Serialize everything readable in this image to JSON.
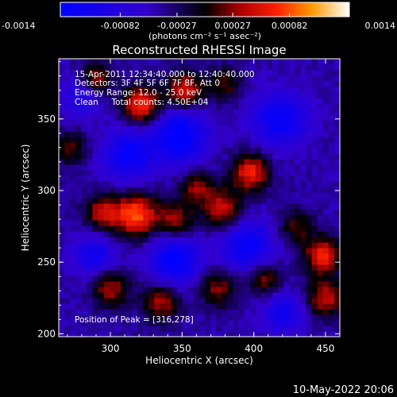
{
  "chart_data": {
    "type": "heatmap",
    "title": "Reconstructed RHESSI Image",
    "xlabel": "Heliocentric X (arcsec)",
    "ylabel": "Heliocentric Y (arcsec)",
    "xlim": [
      264,
      460
    ],
    "ylim": [
      198,
      392
    ],
    "x_ticks": [
      {
        "value": 300,
        "label": "300"
      },
      {
        "value": 350,
        "label": "350"
      },
      {
        "value": 400,
        "label": "400"
      },
      {
        "value": 450,
        "label": "450"
      }
    ],
    "y_ticks": [
      {
        "value": 200,
        "label": "200"
      },
      {
        "value": 250,
        "label": "250"
      },
      {
        "value": 300,
        "label": "300"
      },
      {
        "value": 350,
        "label": "350"
      }
    ],
    "annotations": [
      "15-Apr-2011 12:34:40.000 to 12:40:40.000",
      "Detectors: 3F 4F 5F 6F 7F 8F, Att 0",
      "Energy Range: 12.0 - 25.0 keV",
      "Clean     Total counts: 4.50E+04"
    ],
    "peak_label": "Position of Peak = [316,278]",
    "peak": [
      316,
      278
    ],
    "colorbar": {
      "range": [
        -0.0014,
        0.0014
      ],
      "ticks": [
        {
          "value": -0.0014,
          "label": "-0.0014"
        },
        {
          "value": -0.00082,
          "label": "-0.00082"
        },
        {
          "value": -0.00027,
          "label": "-0.00027"
        },
        {
          "value": 0.00027,
          "label": "0.00027"
        },
        {
          "value": 0.00082,
          "label": "0.00082"
        },
        {
          "value": 0.0014,
          "label": "0.0014"
        }
      ],
      "units": "(photons cm⁻² s⁻¹ asec⁻²)"
    },
    "sources": [
      {
        "x": 318,
        "y": 283,
        "amp": 0.0013,
        "sigma": 10
      },
      {
        "x": 295,
        "y": 285,
        "amp": 0.0009,
        "sigma": 9
      },
      {
        "x": 345,
        "y": 280,
        "amp": 0.0008,
        "sigma": 9
      },
      {
        "x": 378,
        "y": 288,
        "amp": 0.0009,
        "sigma": 10
      },
      {
        "x": 398,
        "y": 313,
        "amp": 0.0011,
        "sigma": 9
      },
      {
        "x": 360,
        "y": 303,
        "amp": 0.0007,
        "sigma": 8
      },
      {
        "x": 322,
        "y": 360,
        "amp": 0.0012,
        "sigma": 9
      },
      {
        "x": 352,
        "y": 370,
        "amp": 0.001,
        "sigma": 9
      },
      {
        "x": 290,
        "y": 378,
        "amp": 0.0008,
        "sigma": 8
      },
      {
        "x": 380,
        "y": 375,
        "amp": 0.0006,
        "sigma": 8
      },
      {
        "x": 448,
        "y": 255,
        "amp": 0.0011,
        "sigma": 9
      },
      {
        "x": 450,
        "y": 225,
        "amp": 0.0009,
        "sigma": 9
      },
      {
        "x": 430,
        "y": 275,
        "amp": 0.0006,
        "sigma": 8
      },
      {
        "x": 300,
        "y": 232,
        "amp": 0.0008,
        "sigma": 9
      },
      {
        "x": 335,
        "y": 222,
        "amp": 0.0008,
        "sigma": 9
      },
      {
        "x": 375,
        "y": 232,
        "amp": 0.0007,
        "sigma": 9
      },
      {
        "x": 408,
        "y": 238,
        "amp": 0.0007,
        "sigma": 8
      },
      {
        "x": 272,
        "y": 330,
        "amp": 0.0006,
        "sigma": 8
      },
      {
        "x": 348,
        "y": 338,
        "amp": -0.0011,
        "sigma": 13
      },
      {
        "x": 312,
        "y": 325,
        "amp": -0.0009,
        "sigma": 12
      },
      {
        "x": 418,
        "y": 350,
        "amp": -0.0009,
        "sigma": 13
      },
      {
        "x": 345,
        "y": 252,
        "amp": -0.001,
        "sigma": 12
      },
      {
        "x": 395,
        "y": 262,
        "amp": -0.0009,
        "sigma": 12
      },
      {
        "x": 288,
        "y": 255,
        "amp": -0.0007,
        "sigma": 10
      },
      {
        "x": 420,
        "y": 215,
        "amp": -0.0007,
        "sigma": 10
      },
      {
        "x": 280,
        "y": 365,
        "amp": -0.0005,
        "sigma": 10
      }
    ],
    "grid": false
  },
  "footer": {
    "timestamp": "10-May-2022 20:06"
  }
}
